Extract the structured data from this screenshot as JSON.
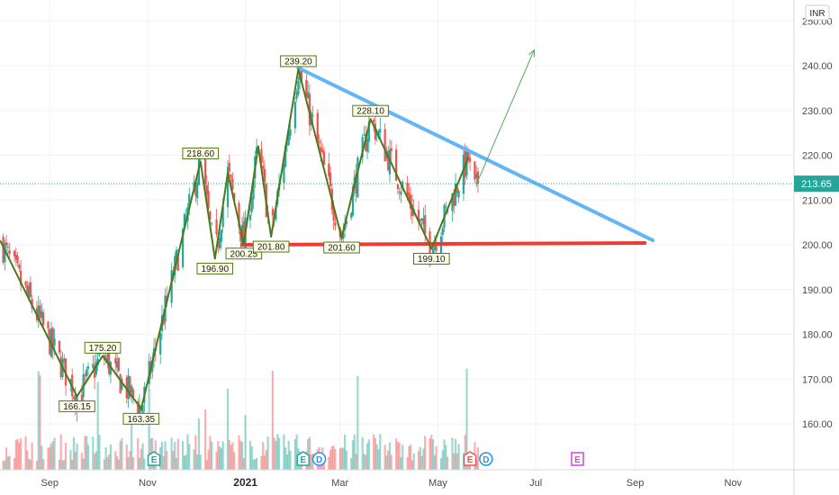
{
  "currency": "INR",
  "last_price": "213.65",
  "colors": {
    "up": "#26a69a",
    "down": "#ef5350",
    "zigzag": "#4a7a1c",
    "resistance": "#64b5f6",
    "support": "#f23b30",
    "projection": "#4caf50",
    "last_price_bg": "#26a69a",
    "earnings": "#26a69a",
    "dividend": "#2196f3",
    "future_earnings": "#d545d5"
  },
  "chart_data": {
    "type": "line",
    "y_scale": "linear",
    "ylim": [
      150,
      252
    ],
    "grid": true,
    "y_ticks": [
      "160.00",
      "170.00",
      "180.00",
      "190.00",
      "200.00",
      "210.00",
      "220.00",
      "230.00",
      "240.00",
      "250.00"
    ],
    "x_ticks": [
      "Sep",
      "Nov",
      "2021",
      "Mar",
      "May",
      "Jul",
      "Sep",
      "Nov"
    ],
    "x_ticks_bold": [
      "2021"
    ],
    "zigzag": {
      "x": [
        "2020-08-01",
        "2020-09-18",
        "2020-10-04",
        "2020-10-28",
        "2020-12-04",
        "2020-12-13",
        "2020-12-21",
        "2020-12-31",
        "2021-01-09",
        "2021-01-17",
        "2021-02-03",
        "2021-03-02",
        "2021-03-20",
        "2021-04-27",
        "2021-05-20"
      ],
      "y": [
        201,
        166.15,
        175.2,
        163.35,
        218.6,
        196.9,
        216,
        200.25,
        222,
        201.8,
        239.2,
        201.6,
        228.1,
        199.1,
        219.5
      ]
    },
    "pivot_labels": [
      {
        "x": "2020-09-18",
        "y": 166.15,
        "label": "166.15",
        "pos": "below"
      },
      {
        "x": "2020-10-04",
        "y": 175.2,
        "label": "175.20",
        "pos": "above"
      },
      {
        "x": "2020-10-28",
        "y": 163.35,
        "label": "163.35",
        "pos": "below"
      },
      {
        "x": "2020-12-04",
        "y": 218.6,
        "label": "218.60",
        "pos": "above"
      },
      {
        "x": "2020-12-13",
        "y": 196.9,
        "label": "196.90",
        "pos": "below"
      },
      {
        "x": "2020-12-31",
        "y": 200.25,
        "label": "200.25",
        "pos": "below"
      },
      {
        "x": "2021-01-17",
        "y": 201.8,
        "label": "201.80",
        "pos": "below"
      },
      {
        "x": "2021-02-03",
        "y": 239.2,
        "label": "239.20",
        "pos": "above"
      },
      {
        "x": "2021-03-02",
        "y": 201.6,
        "label": "201.60",
        "pos": "below"
      },
      {
        "x": "2021-03-20",
        "y": 228.1,
        "label": "228.10",
        "pos": "above"
      },
      {
        "x": "2021-04-27",
        "y": 199.1,
        "label": "199.10",
        "pos": "below"
      }
    ],
    "resistance_line": {
      "x": [
        "2021-02-03",
        "2021-09-12"
      ],
      "y": [
        239.5,
        201
      ]
    },
    "support_line": {
      "x": [
        "2020-12-30",
        "2021-09-07"
      ],
      "y": [
        200,
        200.4
      ]
    },
    "projection_arrow": {
      "x": [
        "2021-05-25",
        "2021-06-30"
      ],
      "y": [
        213.5,
        243.5
      ]
    },
    "last_price_value": 213.65,
    "events": [
      {
        "x": "2020-11-05",
        "label": "E",
        "kind": "earnings"
      },
      {
        "x": "2021-02-06",
        "label": "E",
        "kind": "earnings"
      },
      {
        "x": "2021-02-16",
        "label": "D",
        "kind": "dividend"
      },
      {
        "x": "2021-05-21",
        "label": "E",
        "kind": "earnings_down"
      },
      {
        "x": "2021-05-31",
        "label": "D",
        "kind": "dividend"
      },
      {
        "x": "2021-07-27",
        "label": "E",
        "kind": "future_earnings"
      }
    ]
  }
}
